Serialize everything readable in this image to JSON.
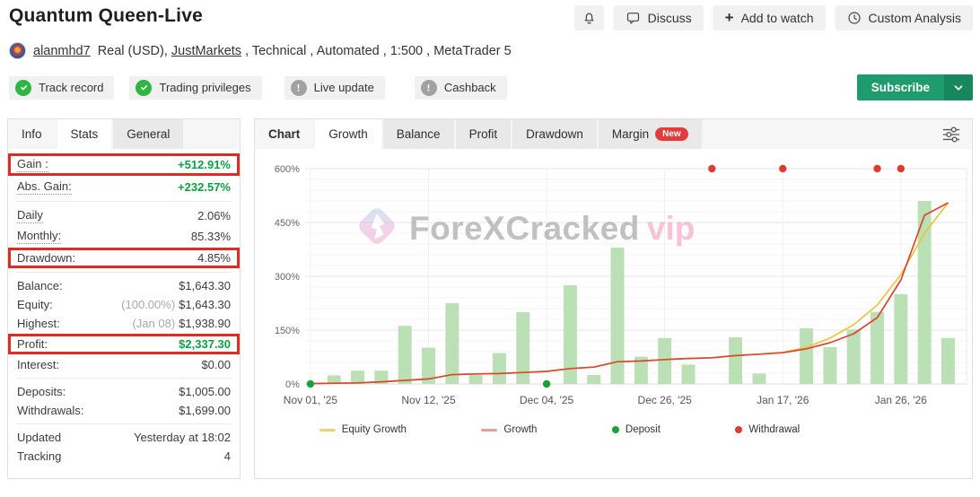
{
  "header": {
    "title": "Quantum Queen-Live",
    "actions": [
      {
        "id": "notifications",
        "icon": "bell-icon",
        "label": ""
      },
      {
        "id": "discuss",
        "icon": "chat-bubble-icon",
        "label": "Discuss"
      },
      {
        "id": "add-to-watch",
        "icon": "plus-icon",
        "label": "Add to watch"
      },
      {
        "id": "custom-analysis",
        "icon": "clock-icon",
        "label": "Custom Analysis"
      }
    ],
    "account": {
      "username": "alanmhd7",
      "pre": "Real (USD), ",
      "broker": "JustMarkets",
      "post": " , Technical , Automated , 1:500 , MetaTrader 5"
    },
    "badges": [
      {
        "label": "Track record",
        "icon": "check-circle-icon",
        "color": "#2cb742"
      },
      {
        "label": "Trading privileges",
        "icon": "check-circle-icon",
        "color": "#2cb742"
      },
      {
        "label": "Live update",
        "icon": "info-circle-icon",
        "color": "#a2a2a2"
      },
      {
        "label": "Cashback",
        "icon": "info-circle-icon",
        "color": "#a2a2a2"
      }
    ],
    "subscribe_label": "Subscribe"
  },
  "left_panel": {
    "tabs": [
      {
        "label": "Info",
        "style": "plain"
      },
      {
        "label": "Stats",
        "style": "active"
      },
      {
        "label": "General",
        "style": "tile"
      }
    ],
    "rows": [
      {
        "label": "Gain :",
        "value": "+512.91%",
        "green": true,
        "boxed": true,
        "dotted": true
      },
      {
        "label": "Abs. Gain:",
        "value": "+232.57%",
        "green": true,
        "dotted": true
      },
      {
        "divider": true
      },
      {
        "label": "Daily",
        "value": "2.06%",
        "dotted": true
      },
      {
        "label": "Monthly:",
        "value": "85.33%",
        "dotted": true
      },
      {
        "label": "Drawdown:",
        "value": "4.85%",
        "boxed": true
      },
      {
        "divider": true
      },
      {
        "label": "Balance:",
        "value": "$1,643.30"
      },
      {
        "label": "Equity:",
        "prefix": "(100.00%)",
        "value": "$1,643.30"
      },
      {
        "label": "Highest:",
        "prefix": "(Jan 08)",
        "value": "$1,938.90"
      },
      {
        "label": "Profit:",
        "value": "$2,337.30",
        "green": true,
        "boxed": true
      },
      {
        "label": "Interest:",
        "value": "$0.00"
      },
      {
        "divider": true
      },
      {
        "label": "Deposits:",
        "value": "$1,005.00"
      },
      {
        "label": "Withdrawals:",
        "value": "$1,699.00"
      },
      {
        "divider": true
      },
      {
        "label": "Updated",
        "value": "Yesterday at 18:02"
      },
      {
        "label": "Tracking",
        "value": "4"
      }
    ]
  },
  "chart_panel": {
    "tabs": [
      {
        "label": "Chart",
        "style": "plain bold"
      },
      {
        "label": "Growth",
        "style": "active"
      },
      {
        "label": "Balance",
        "style": "tile"
      },
      {
        "label": "Profit",
        "style": "tile"
      },
      {
        "label": "Drawdown",
        "style": "tile"
      },
      {
        "label": "Margin",
        "style": "tile",
        "badge": "New"
      }
    ],
    "watermark": {
      "text": "ForeXCracked",
      "suffix": "vip"
    }
  },
  "chart_data": {
    "type": "bar+line",
    "title": "Growth",
    "ylabel": "%",
    "ylim": [
      0,
      600
    ],
    "y_ticks": [
      0,
      150,
      300,
      450,
      600
    ],
    "y_tick_suffix": "%",
    "minor_grid_step": 30,
    "grid": true,
    "x_ticks": [
      {
        "slot": 0,
        "label": "Nov 01, '25"
      },
      {
        "slot": 5,
        "label": "Nov 12, '25"
      },
      {
        "slot": 10,
        "label": "Dec 04, '25"
      },
      {
        "slot": 15,
        "label": "Dec 26, '25"
      },
      {
        "slot": 20,
        "label": "Jan 17, '26"
      },
      {
        "slot": 25,
        "label": "Jan 26, '26"
      }
    ],
    "bars": {
      "name": "Periodic growth %",
      "color": "#bce0b6",
      "values": [
        0,
        24,
        37,
        37,
        162,
        101,
        225,
        25,
        86,
        200,
        0,
        275,
        25,
        380,
        76,
        128,
        54,
        0,
        130,
        29,
        0,
        155,
        103,
        152,
        201,
        250,
        510,
        128
      ]
    },
    "series": [
      {
        "name": "Equity Growth",
        "color": "#eec23c",
        "values": [
          1,
          2,
          3,
          6,
          10,
          14,
          26,
          28,
          29,
          32,
          35,
          43,
          47,
          62,
          64,
          68,
          71,
          73,
          79,
          83,
          88,
          102,
          128,
          165,
          220,
          305,
          420,
          505
        ]
      },
      {
        "name": "Growth",
        "color": "#d84732",
        "values": [
          1,
          2,
          3,
          6,
          10,
          14,
          26,
          28,
          29,
          32,
          35,
          43,
          47,
          62,
          64,
          68,
          71,
          73,
          79,
          83,
          87,
          98,
          115,
          140,
          185,
          290,
          470,
          505
        ]
      }
    ],
    "markers": {
      "deposits": {
        "label": "Deposit",
        "color": "#16a337",
        "slots": [
          0,
          10
        ],
        "value": 0
      },
      "withdrawals": {
        "label": "Withdrawal",
        "color": "#e23b2e",
        "slots": [
          17,
          20,
          24,
          25
        ],
        "value": 600
      }
    },
    "legend": [
      {
        "label": "Equity Growth",
        "swatch": "line",
        "color": "#f0d06e"
      },
      {
        "label": "Growth",
        "swatch": "line",
        "color": "#ef9a93"
      },
      {
        "label": "Deposit",
        "swatch": "dot",
        "color": "#16a337"
      },
      {
        "label": "Withdrawal",
        "swatch": "dot",
        "color": "#e23b2e"
      }
    ],
    "legend_position": "bottom"
  }
}
